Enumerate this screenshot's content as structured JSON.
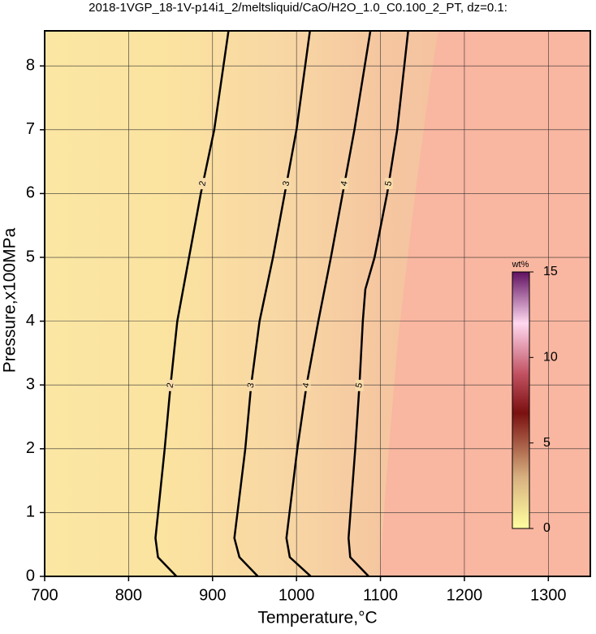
{
  "chart_data": {
    "type": "contour",
    "title": "2018-1VGP_18-1V-p14i1_2/meltsliquid/CaO/H2O_1.0_C0.100_2_PT, dz=0.1:",
    "x_label": "Temperature,°C",
    "y_label": "Pressure,x100MPa",
    "xlim": [
      700,
      1350
    ],
    "ylim": [
      0,
      8.55
    ],
    "xticks": [
      700,
      800,
      900,
      1000,
      1100,
      1200,
      1300
    ],
    "yticks": [
      0,
      1,
      2,
      3,
      4,
      5,
      6,
      7,
      8
    ],
    "grid": true,
    "contours": [
      {
        "level": 2,
        "x": [
          857,
          835,
          832,
          843,
          850,
          858,
          872,
          886,
          902,
          919
        ],
        "y": [
          0,
          0.3,
          0.6,
          2,
          3,
          4,
          5,
          6,
          7,
          8.55
        ]
      },
      {
        "level": 3,
        "x": [
          954,
          932,
          926,
          939,
          946,
          956,
          972,
          986,
          1000,
          1016
        ],
        "y": [
          0,
          0.3,
          0.6,
          2,
          3,
          4,
          5,
          6,
          7,
          8.55
        ]
      },
      {
        "level": 4,
        "x": [
          1017,
          992,
          988,
          1001,
          1012,
          1026,
          1041,
          1055,
          1069,
          1088
        ],
        "y": [
          0,
          0.3,
          0.6,
          2,
          3,
          4,
          5,
          6,
          7,
          8.55
        ]
      },
      {
        "level": 5,
        "x": [
          1086,
          1064,
          1062,
          1070,
          1075,
          1079,
          1082,
          1093,
          1108,
          1120,
          1133
        ],
        "y": [
          0,
          0.3,
          0.6,
          2,
          3,
          4,
          4.5,
          5,
          6,
          7,
          8.55
        ]
      }
    ],
    "colorbar": {
      "label": "wt%",
      "lim": [
        0,
        15
      ],
      "ticks": [
        0,
        5,
        10,
        15
      ]
    }
  }
}
